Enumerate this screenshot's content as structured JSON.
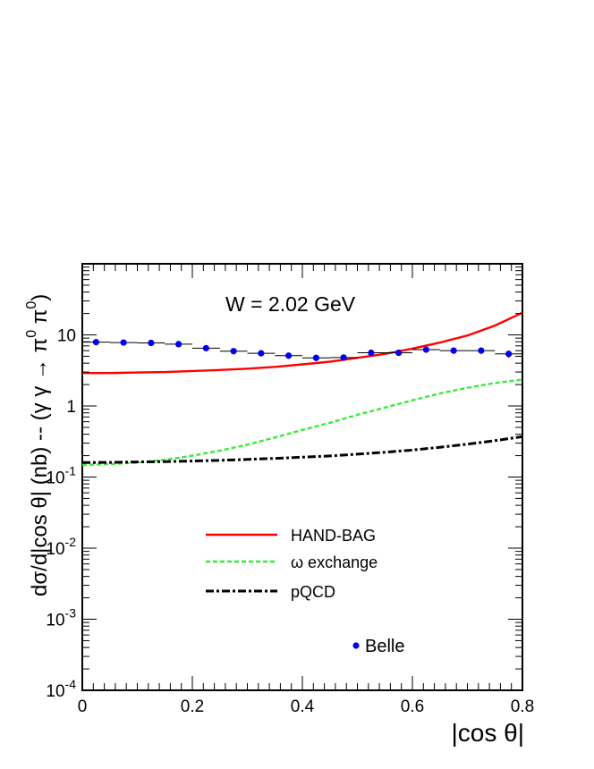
{
  "chart_data": {
    "type": "line",
    "annotation": "W = 2.02 GeV",
    "xlabel": "|cos θ|",
    "ylabel_main": "dσ/d|cos θ| (nb) -- (γ γ → π",
    "ylabel_sup1": "0",
    "ylabel_mid": " π",
    "ylabel_sup2": "0",
    "ylabel_end": ")",
    "xlim": [
      0,
      0.8
    ],
    "ylim": [
      0.0001,
      100
    ],
    "yscale": "log",
    "x_ticks": [
      0,
      0.2,
      0.4,
      0.6,
      0.8
    ],
    "x_tick_labels": [
      "0",
      "0.2",
      "0.4",
      "0.6",
      "0.8"
    ],
    "y_ticks": [
      {
        "value": 10,
        "base": "10",
        "exp": ""
      },
      {
        "value": 1,
        "base": "1",
        "exp": ""
      },
      {
        "value": 0.1,
        "base": "10",
        "exp": "-1"
      },
      {
        "value": 0.01,
        "base": "10",
        "exp": "-2"
      },
      {
        "value": 0.001,
        "base": "10",
        "exp": "-3"
      },
      {
        "value": 0.0001,
        "base": "10",
        "exp": "-4"
      }
    ],
    "series": [
      {
        "name": "HAND-BAG",
        "style": "solid",
        "color": "#ff0000",
        "x": [
          0,
          0.05,
          0.1,
          0.15,
          0.2,
          0.25,
          0.3,
          0.35,
          0.4,
          0.45,
          0.5,
          0.55,
          0.6,
          0.65,
          0.7,
          0.75,
          0.8
        ],
        "y": [
          2.9,
          2.9,
          2.95,
          3.0,
          3.1,
          3.2,
          3.35,
          3.55,
          3.85,
          4.2,
          4.75,
          5.4,
          6.4,
          7.8,
          9.8,
          13.5,
          20.5
        ]
      },
      {
        "name": "ω exchange",
        "style": "dashed",
        "color": "#33ee33",
        "x": [
          0,
          0.05,
          0.1,
          0.15,
          0.2,
          0.25,
          0.3,
          0.35,
          0.4,
          0.45,
          0.5,
          0.55,
          0.6,
          0.65,
          0.7,
          0.75,
          0.8
        ],
        "y": [
          0.148,
          0.152,
          0.16,
          0.175,
          0.2,
          0.235,
          0.285,
          0.36,
          0.46,
          0.58,
          0.75,
          0.95,
          1.2,
          1.5,
          1.8,
          2.1,
          2.35
        ]
      },
      {
        "name": "pQCD",
        "style": "dashdot",
        "color": "#000000",
        "x": [
          0,
          0.05,
          0.1,
          0.15,
          0.2,
          0.25,
          0.3,
          0.35,
          0.4,
          0.45,
          0.5,
          0.55,
          0.6,
          0.65,
          0.7,
          0.75,
          0.8
        ],
        "y": [
          0.16,
          0.161,
          0.163,
          0.165,
          0.168,
          0.172,
          0.177,
          0.183,
          0.19,
          0.198,
          0.21,
          0.223,
          0.24,
          0.262,
          0.29,
          0.325,
          0.37
        ]
      },
      {
        "name": "Belle",
        "style": "points",
        "color": "#0000ee",
        "x": [
          0.025,
          0.075,
          0.125,
          0.175,
          0.225,
          0.275,
          0.325,
          0.375,
          0.425,
          0.475,
          0.525,
          0.575,
          0.625,
          0.675,
          0.725,
          0.775
        ],
        "y": [
          7.9,
          7.8,
          7.7,
          7.4,
          6.5,
          5.9,
          5.5,
          5.1,
          4.75,
          4.8,
          5.6,
          5.6,
          6.2,
          6.0,
          6.0,
          5.4
        ],
        "err": [
          0.6,
          0.6,
          0.6,
          0.6,
          0.6,
          0.5,
          0.5,
          0.5,
          0.5,
          0.4,
          0.5,
          0.5,
          0.6,
          0.6,
          0.6,
          0.6
        ]
      }
    ],
    "legend_position": "lower-center"
  }
}
